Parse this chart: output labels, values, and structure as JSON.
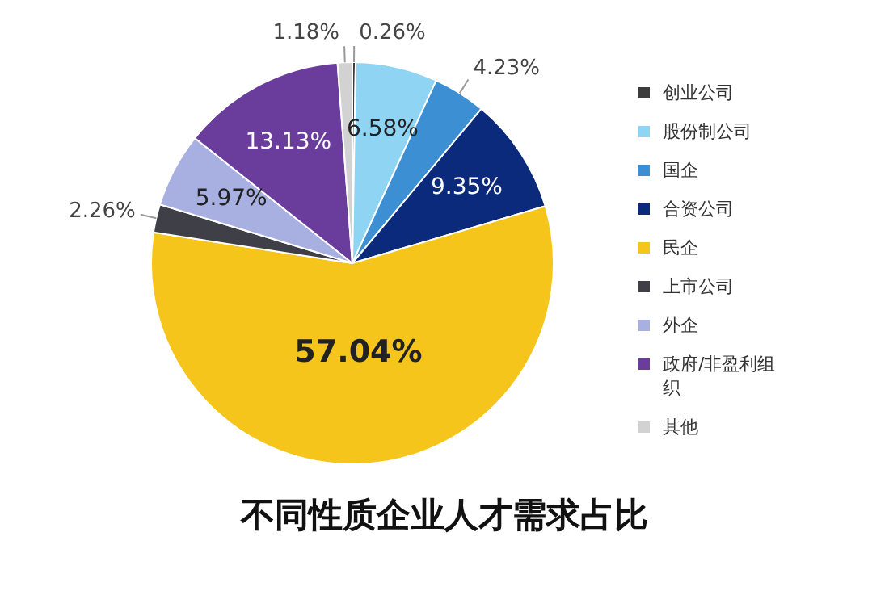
{
  "chart_data": {
    "type": "pie",
    "title": "不同性质企业人才需求占比",
    "categories": [
      "创业公司",
      "股份制公司",
      "国企",
      "合资公司",
      "民企",
      "上市公司",
      "外企",
      "政府/非盈利组织",
      "其他"
    ],
    "values": [
      0.26,
      6.58,
      4.23,
      9.35,
      57.04,
      2.26,
      5.97,
      13.13,
      1.18
    ],
    "colors": [
      "#3c3c3c",
      "#8fd4f2",
      "#3b8fd2",
      "#0b2a7c",
      "#f6c51c",
      "#3f3f48",
      "#a8b0e2",
      "#6a3c9c",
      "#d2d2d2"
    ],
    "value_labels": [
      "0.26%",
      "6.58%",
      "4.23%",
      "9.35%",
      "57.04%",
      "2.26%",
      "5.97%",
      "13.13%",
      "1.18%"
    ],
    "legend": "right"
  }
}
